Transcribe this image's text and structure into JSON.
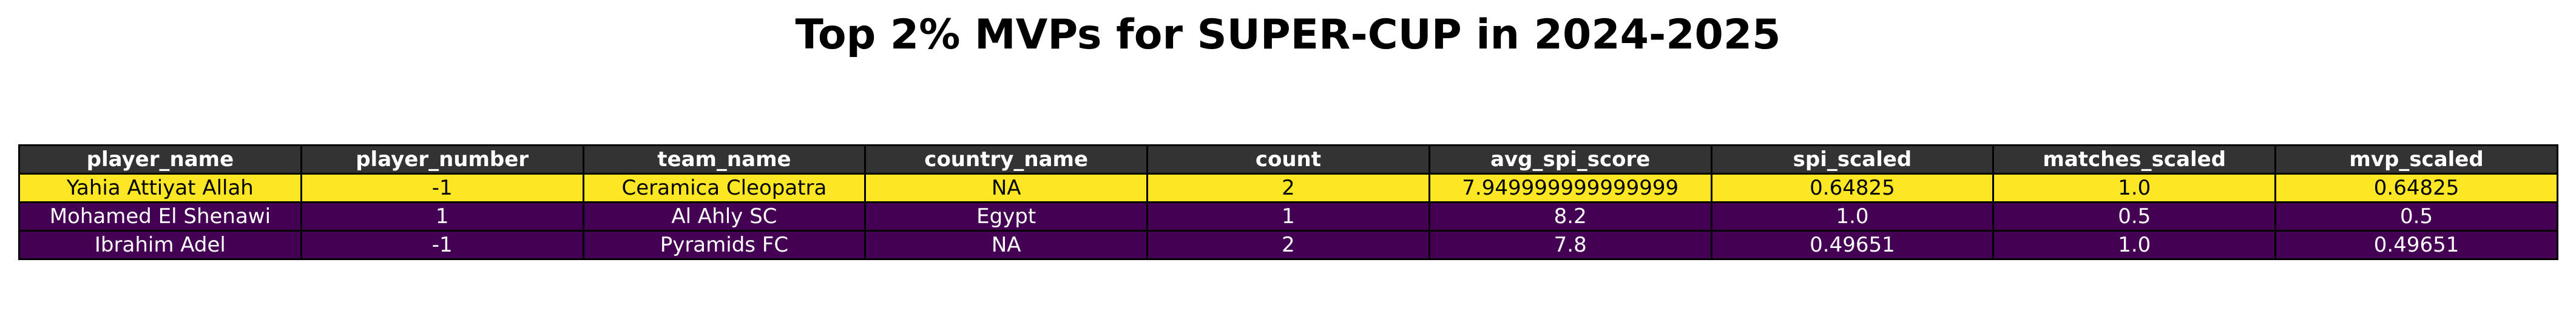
{
  "chart_data": {
    "type": "table",
    "title": "Top 2% MVPs for SUPER-CUP in 2024-2025",
    "columns": [
      "player_name",
      "player_number",
      "team_name",
      "country_name",
      "count",
      "avg_spi_score",
      "spi_scaled",
      "matches_scaled",
      "mvp_scaled"
    ],
    "rows": [
      [
        "Yahia Attiyat Allah",
        "-1",
        "Ceramica Cleopatra",
        "NA",
        "2",
        "7.949999999999999",
        "0.64825",
        "1.0",
        "0.64825"
      ],
      [
        "Mohamed El Shenawi",
        "1",
        "Al Ahly SC",
        "Egypt",
        "1",
        "8.2",
        "1.0",
        "0.5",
        "0.5"
      ],
      [
        "Ibrahim Adel",
        "-1",
        "Pyramids FC",
        "NA",
        "2",
        "7.8",
        "0.49651",
        "1.0",
        "0.49651"
      ]
    ],
    "colors": {
      "header_bg": "#333333",
      "header_text": "#ffffff",
      "row_backgrounds": [
        "#fde725",
        "#440154",
        "#440154"
      ],
      "row_text": [
        "#000000",
        "#ffffff",
        "#ffffff"
      ]
    }
  }
}
